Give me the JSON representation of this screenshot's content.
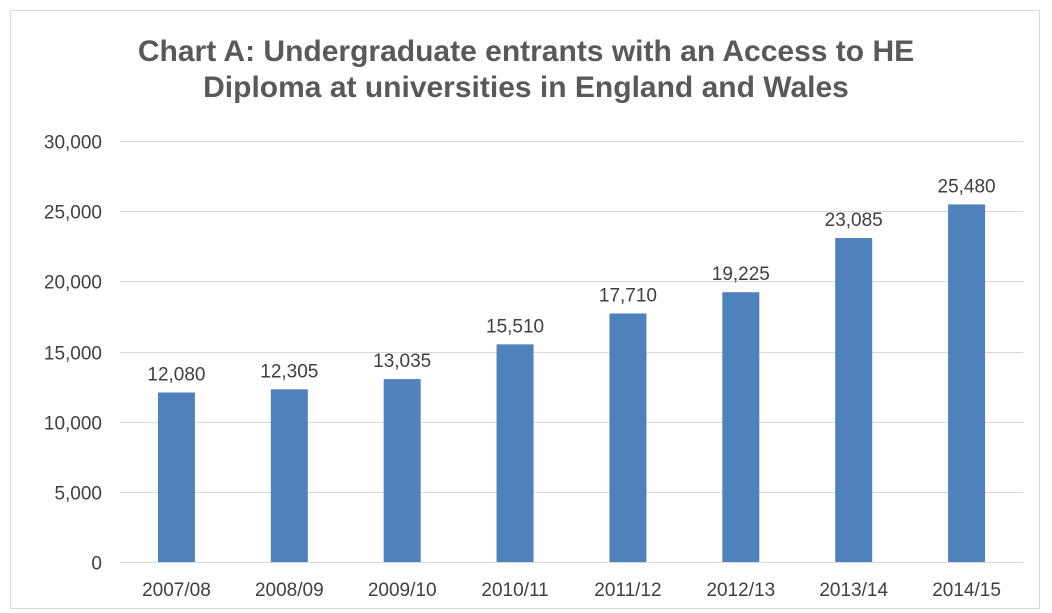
{
  "chart_data": {
    "type": "bar",
    "title_lines": [
      "Chart A: Undergraduate entrants with an Access to HE",
      "Diploma at universities in England and Wales"
    ],
    "categories": [
      "2007/08",
      "2008/09",
      "2009/10",
      "2010/11",
      "2011/12",
      "2012/13",
      "2013/14",
      "2014/15"
    ],
    "values": [
      12080,
      12305,
      13035,
      15510,
      17710,
      19225,
      23085,
      25480
    ],
    "data_labels": [
      "12,080",
      "12,305",
      "13,035",
      "15,510",
      "17,710",
      "19,225",
      "23,085",
      "25,480"
    ],
    "y_ticks": [
      0,
      5000,
      10000,
      15000,
      20000,
      25000,
      30000
    ],
    "y_tick_labels": [
      "0",
      "5,000",
      "10,000",
      "15,000",
      "20,000",
      "25,000",
      "30,000"
    ],
    "ylim": [
      0,
      30000
    ],
    "xlabel": "",
    "ylabel": "",
    "grid": true,
    "legend": "none",
    "bar_color": "#4f81bd",
    "grid_color": "#d9d9d9"
  }
}
